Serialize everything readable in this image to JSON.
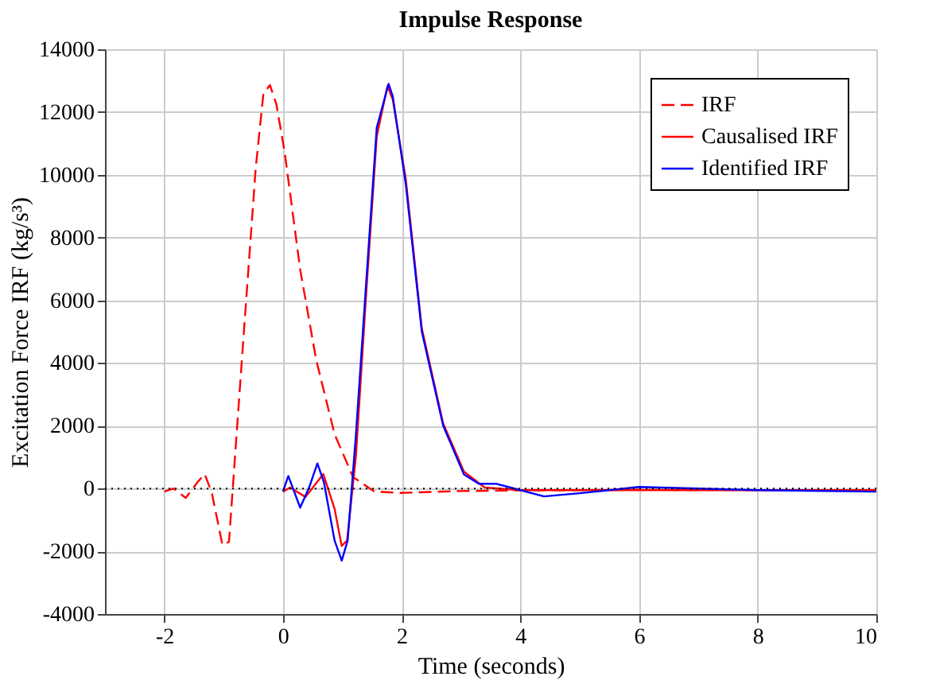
{
  "chart_data": {
    "type": "line",
    "title": "Impulse Response",
    "xlabel": "Time (seconds)",
    "ylabel": "Excitation Force IRF (kg/s³)",
    "xlim": [
      -3,
      10
    ],
    "xticks": [
      -2,
      0,
      2,
      4,
      6,
      8,
      10
    ],
    "ylim": [
      -4000,
      14000
    ],
    "yticks": [
      -4000,
      -2000,
      0,
      2000,
      4000,
      6000,
      8000,
      10000,
      12000,
      14000
    ],
    "grid": true,
    "legend": "top right",
    "marker": "none",
    "ref_lines": [
      {
        "axis": "y",
        "value": 0,
        "color": "#000000",
        "line_style": "dotted"
      }
    ],
    "series": [
      {
        "name": "IRF",
        "color": "#ff0000",
        "line_style": "dashed",
        "x": [
          -2,
          -1.84,
          -1.64,
          -1.44,
          -1.32,
          -1.2,
          -1.02,
          -0.91,
          -0.68,
          -0.46,
          -0.33,
          -0.22,
          -0.11,
          0.03,
          0.29,
          0.56,
          0.87,
          1.18,
          1.54,
          1.98,
          3,
          4,
          6,
          8,
          10
        ],
        "values": [
          -100,
          0,
          -300,
          200,
          460,
          -130,
          -1800,
          -1700,
          4440,
          10200,
          12580,
          12860,
          12240,
          10700,
          6980,
          4100,
          1730,
          370,
          -100,
          -140,
          -80,
          -60,
          -40,
          -50,
          -50
        ]
      },
      {
        "name": "Causalised IRF",
        "color": "#ff0000",
        "line_style": "solid",
        "x": [
          0,
          0.12,
          0.38,
          0.68,
          0.87,
          0.99,
          1.08,
          1.23,
          1.4,
          1.58,
          1.76,
          1.85,
          2.07,
          2.34,
          2.7,
          3.05,
          3.4,
          4,
          6,
          8,
          10
        ],
        "values": [
          -100,
          30,
          -270,
          460,
          -650,
          -1830,
          -1660,
          1050,
          6140,
          11220,
          12830,
          12400,
          9860,
          5100,
          2070,
          540,
          30,
          -50,
          -50,
          -50,
          -50
        ]
      },
      {
        "name": "Identified IRF",
        "color": "#0000ff",
        "line_style": "solid",
        "x": [
          0,
          0.09,
          0.29,
          0.44,
          0.58,
          0.69,
          0.87,
          0.99,
          1.09,
          1.23,
          1.4,
          1.58,
          1.78,
          1.85,
          2.07,
          2.34,
          2.7,
          3.05,
          3.3,
          3.6,
          3.9,
          4.4,
          5,
          6,
          7,
          8,
          10
        ],
        "values": [
          -100,
          400,
          -610,
          30,
          800,
          200,
          -1660,
          -2300,
          -1660,
          1730,
          6500,
          11500,
          12900,
          12500,
          9700,
          5000,
          2000,
          450,
          150,
          150,
          0,
          -250,
          -150,
          50,
          0,
          -50,
          -100
        ]
      }
    ]
  }
}
